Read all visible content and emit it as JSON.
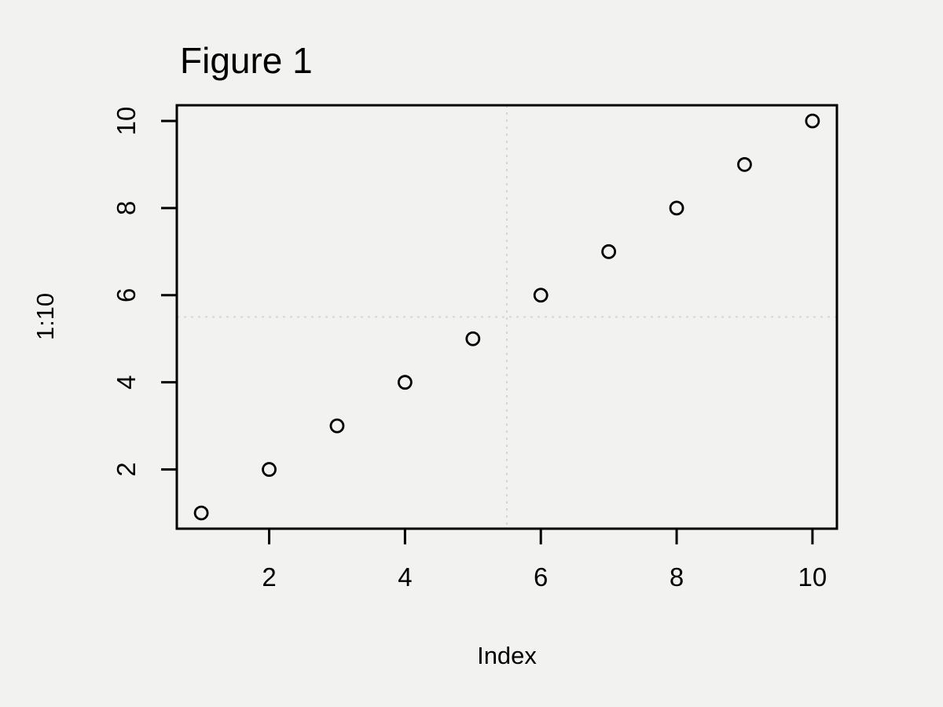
{
  "figure": {
    "title": "Figure 1"
  },
  "chart_data": {
    "type": "scatter",
    "title": "Figure 1",
    "xlabel": "Index",
    "ylabel": "1:10",
    "x": [
      1,
      2,
      3,
      4,
      5,
      6,
      7,
      8,
      9,
      10
    ],
    "y": [
      1,
      2,
      3,
      4,
      5,
      6,
      7,
      8,
      9,
      10
    ],
    "x_ticks": [
      2,
      4,
      6,
      8,
      10
    ],
    "y_ticks": [
      2,
      4,
      6,
      8,
      10
    ],
    "xlim": [
      0.64,
      10.36
    ],
    "ylim": [
      0.64,
      10.36
    ],
    "grid": false,
    "legend": "none",
    "reference_lines": {
      "vertical_x": 5.5,
      "horizontal_y": 5.5,
      "line_style": "dotted",
      "color": "#d6d6d6"
    },
    "point_style": {
      "shape": "open-circle",
      "stroke_color": "#000000",
      "radius_px": 8,
      "stroke_width_px": 2.8
    },
    "colors": {
      "background": "#f2f2f0",
      "axis": "#000000",
      "text": "#000000"
    }
  }
}
